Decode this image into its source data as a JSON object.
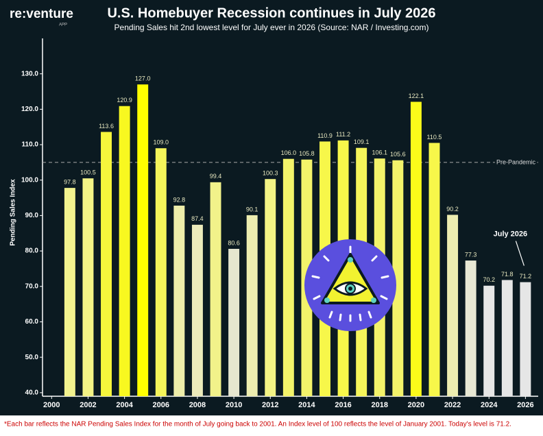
{
  "brand": {
    "name": "re:venture",
    "tag": "APP"
  },
  "chart_data": {
    "type": "bar",
    "title": "U.S. Homebuyer Recession continues in July 2026",
    "subtitle": "Pending Sales hit 2nd lowest level for July ever in 2026 (Source: NAR / Investing.com)",
    "y_label": "Pending Sales Index",
    "x": [
      2001,
      2002,
      2003,
      2004,
      2005,
      2006,
      2007,
      2008,
      2009,
      2010,
      2011,
      2012,
      2013,
      2014,
      2015,
      2016,
      2017,
      2018,
      2019,
      2020,
      2021,
      2022,
      2023,
      2024,
      2025,
      2026
    ],
    "values": [
      97.8,
      100.5,
      113.6,
      120.9,
      127.0,
      109.0,
      92.8,
      87.4,
      99.4,
      80.6,
      90.1,
      100.3,
      106.0,
      105.8,
      110.9,
      111.2,
      109.1,
      106.1,
      105.6,
      122.1,
      110.5,
      90.2,
      77.3,
      70.2,
      71.8,
      71.2
    ],
    "value_labels": [
      "97.8",
      "100.5",
      "113.6",
      "120.9",
      "127.0",
      "109.0",
      "92.8",
      "87.4",
      "99.4",
      "80.6",
      "90.1",
      "100.3",
      "106.0",
      "105.8",
      "110.9",
      "111.2",
      "109.1",
      "106.1",
      "105.6",
      "122.1",
      "110.5",
      "90.2",
      "77.3",
      "70.2",
      "71.8",
      "71.2"
    ],
    "colors": [
      "#f2f28e",
      "#f3f385",
      "#f6f63c",
      "#f8f820",
      "#ffff00",
      "#f5f55a",
      "#eeeeaa",
      "#ecebbb",
      "#f2f28a",
      "#e6e6cf",
      "#ededb0",
      "#f3f385",
      "#f3f36a",
      "#f3f36a",
      "#f7f74a",
      "#f7f74a",
      "#f5f55a",
      "#f3f36a",
      "#f3f36a",
      "#fbfb1a",
      "#f7f74a",
      "#ededb0",
      "#e8e8d4",
      "#e6e6e6",
      "#e6e6e6",
      "#e6e6e6"
    ],
    "xlim": [
      1999.5,
      2026.7
    ],
    "xticks": [
      2000,
      2002,
      2004,
      2006,
      2008,
      2010,
      2012,
      2014,
      2016,
      2018,
      2020,
      2022,
      2024,
      2026
    ],
    "ylim": [
      39,
      140
    ],
    "yticks": [
      {
        "value": 40,
        "label": "40.0"
      },
      {
        "value": 50,
        "label": "50.0"
      },
      {
        "value": 60,
        "label": "60.0"
      },
      {
        "value": 70,
        "label": "70.0"
      },
      {
        "value": 80,
        "label": "80.0"
      },
      {
        "value": 90,
        "label": "90.0"
      },
      {
        "value": 100,
        "label": "100.0"
      },
      {
        "value": 110,
        "label": "110.0"
      },
      {
        "value": 120,
        "label": "120.0"
      },
      {
        "value": 130,
        "label": "130.0"
      }
    ],
    "reference_line": {
      "value": 105,
      "label": "Pre-Pandemic"
    },
    "annotation": "July 2026",
    "footnote": "*Each bar reflects the NAR Pending Sales Index for the month of July going back to 2001. An Index level of 100 reflects the level of January 2001. Today's level is 71.2."
  }
}
